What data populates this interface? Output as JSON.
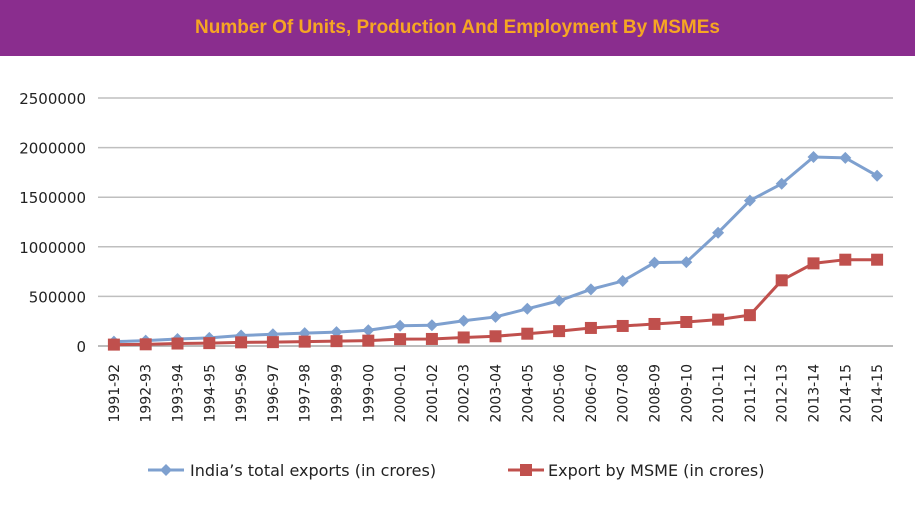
{
  "header": {
    "title": "Number Of Units, Production And Employment By MSMEs",
    "background": "#8a2d8e",
    "title_color": "#f6a623"
  },
  "chart_data": {
    "type": "line",
    "categories": [
      "1991-92",
      "1992-93",
      "1993-94",
      "1994-95",
      "1995-96",
      "1996-97",
      "1997-98",
      "1998-99",
      "1999-00",
      "2000-01",
      "2001-02",
      "2002-03",
      "2003-04",
      "2004-05",
      "2005-06",
      "2006-07",
      "2007-08",
      "2008-09",
      "2009-10",
      "2010-11",
      "2011-12",
      "2012-13",
      "2013-14",
      "2014-15",
      "2014-15"
    ],
    "series": [
      {
        "name": "India’s total exports (in crores)",
        "color": "#7ea0cf",
        "marker": "diamond",
        "values": [
          44000,
          54000,
          70000,
          82000,
          106000,
          118000,
          130000,
          140000,
          159000,
          204000,
          209000,
          255000,
          293000,
          375000,
          456000,
          571000,
          655000,
          840000,
          845000,
          1142000,
          1466000,
          1635000,
          1905000,
          1897000,
          1716000
        ]
      },
      {
        "name": "Export by MSME (in crores)",
        "color": "#c0504d",
        "marker": "square",
        "values": [
          14000,
          17000,
          25000,
          29000,
          37000,
          39000,
          44000,
          49000,
          54000,
          69000,
          71000,
          86000,
          98000,
          124000,
          150000,
          182000,
          202000,
          222000,
          242000,
          266000,
          311000,
          662000,
          833000,
          870000,
          870000
        ]
      }
    ],
    "title": "",
    "xlabel": "",
    "ylabel": "",
    "ylim": [
      0,
      2500000
    ],
    "yticks": [
      0,
      500000,
      1000000,
      1500000,
      2000000,
      2500000
    ],
    "grid": true,
    "legend": "bottom"
  }
}
